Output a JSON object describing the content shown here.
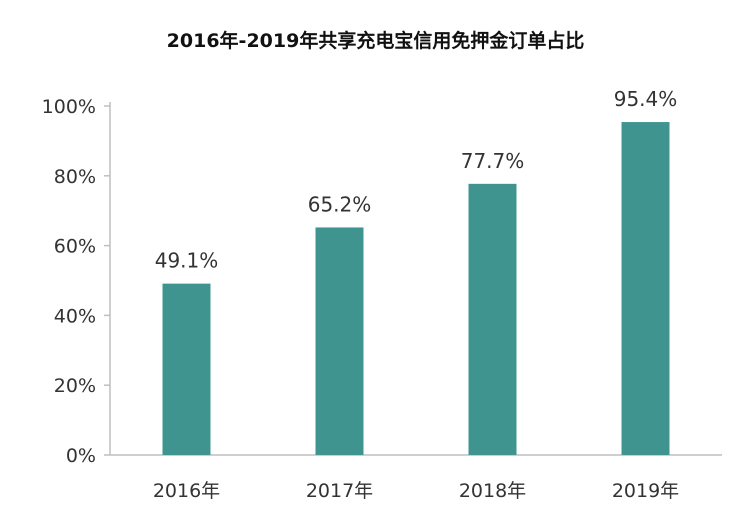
{
  "chart_data": {
    "type": "bar",
    "title": "2016年-2019年共享充电宝信用免押金订单占比",
    "xlabel": "",
    "ylabel": "",
    "categories": [
      "2016年",
      "2017年",
      "2018年",
      "2019年"
    ],
    "values": [
      49.1,
      65.2,
      77.7,
      95.4
    ],
    "data_labels": [
      "49.1%",
      "65.2%",
      "77.7%",
      "95.4%"
    ],
    "ylim": [
      0,
      100
    ],
    "yticks": [
      0,
      20,
      40,
      60,
      80,
      100
    ],
    "ytick_labels": [
      "0%",
      "20%",
      "40%",
      "60%",
      "80%",
      "100%"
    ],
    "bar_color": "#3f948f",
    "axis_color": "#bfbfbf",
    "grid": false,
    "legend": "none"
  }
}
